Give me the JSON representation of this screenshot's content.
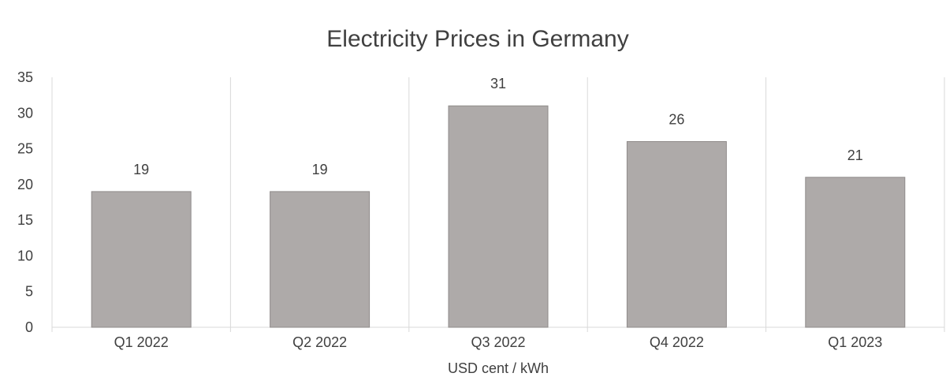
{
  "chart_data": {
    "type": "bar",
    "title": "Electricity Prices in Germany",
    "xlabel": "USD cent / kWh",
    "ylabel": "",
    "categories": [
      "Q1 2022",
      "Q2 2022",
      "Q3 2022",
      "Q4 2022",
      "Q1 2023"
    ],
    "values": [
      19,
      19,
      31,
      26,
      21
    ],
    "data_labels": [
      "19",
      "19",
      "31",
      "26",
      "21"
    ],
    "ylim": [
      0,
      35
    ],
    "yticks": [
      0,
      5,
      10,
      15,
      20,
      25,
      30,
      35
    ],
    "grid": "vertical category separators",
    "legend": "none",
    "bar_color": "#aeaaa9",
    "bar_border_color": "#8f8b8a",
    "text_color": "#404040",
    "grid_color": "#d9d9d9"
  }
}
